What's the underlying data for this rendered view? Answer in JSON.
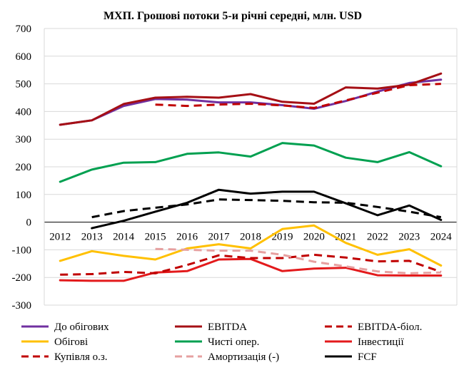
{
  "chart_data": {
    "type": "line",
    "title": "МХП. Грошові потоки 5-и річні середні, млн. USD",
    "xlabel": "",
    "ylabel": "",
    "x": [
      "2012",
      "2013",
      "2014",
      "2015",
      "2016",
      "2017",
      "2018",
      "2019",
      "2020",
      "2021",
      "2022",
      "2023",
      "2024"
    ],
    "yticks": [
      "700",
      "600",
      "500",
      "400",
      "300",
      "200",
      "100",
      "0",
      "-100",
      "-200",
      "-300"
    ],
    "ylim": [
      -300,
      700
    ],
    "grid": true,
    "legend_position": "bottom",
    "series": [
      {
        "name": "До обігових",
        "color": "#7030a0",
        "dash": "solid",
        "values": [
          352,
          368,
          420,
          445,
          443,
          433,
          433,
          423,
          410,
          438,
          472,
          503,
          515
        ]
      },
      {
        "name": "EBITDA",
        "color": "#a50f15",
        "dash": "solid",
        "values": [
          352,
          368,
          427,
          450,
          453,
          450,
          463,
          435,
          428,
          487,
          483,
          497,
          537
        ]
      },
      {
        "name": "EBITDA-біол.",
        "color": "#c00000",
        "dash": "dashed",
        "values": [
          null,
          null,
          null,
          425,
          420,
          425,
          428,
          422,
          413,
          440,
          468,
          495,
          500
        ]
      },
      {
        "name": "Обігові",
        "color": "#ffc000",
        "dash": "solid",
        "values": [
          -140,
          -105,
          -122,
          -135,
          -95,
          -80,
          -95,
          -25,
          -12,
          -75,
          -118,
          -98,
          -157
        ]
      },
      {
        "name": "Чисті опер.",
        "color": "#00a050",
        "dash": "solid",
        "values": [
          146,
          190,
          215,
          217,
          247,
          252,
          237,
          286,
          277,
          233,
          217,
          253,
          202
        ]
      },
      {
        "name": "Інвестиції",
        "color": "#e31a1c",
        "dash": "solid",
        "values": [
          -210,
          -212,
          -212,
          -182,
          -177,
          -135,
          -133,
          -177,
          -168,
          -165,
          -192,
          -193,
          -193
        ]
      },
      {
        "name": "Купівля о.з.",
        "color": "#c00000",
        "dash": "dashed",
        "values": [
          -190,
          -188,
          -180,
          -185,
          -155,
          -120,
          -130,
          -130,
          -118,
          -128,
          -142,
          -140,
          -180
        ]
      },
      {
        "name": "Амортизація (-)",
        "color": "#e6a0a0",
        "dash": "dashed",
        "values": [
          null,
          null,
          null,
          -97,
          -100,
          -103,
          -103,
          -118,
          -143,
          -160,
          -178,
          -185,
          -182
        ]
      },
      {
        "name": "FCF",
        "color": "#000000",
        "dash": "solid",
        "values": [
          null,
          -22,
          5,
          38,
          70,
          117,
          103,
          110,
          110,
          68,
          25,
          60,
          8
        ]
      },
      {
        "name": "FCF trend",
        "color": "#000000",
        "dash": "dashed",
        "legend": false,
        "values": [
          null,
          18,
          40,
          52,
          64,
          82,
          80,
          77,
          72,
          70,
          55,
          38,
          18
        ]
      }
    ]
  }
}
